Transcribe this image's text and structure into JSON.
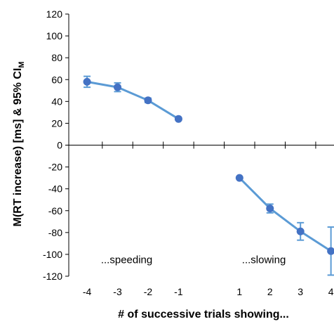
{
  "chart_data": {
    "type": "line",
    "title": "",
    "xlabel": "# of successive trials showing...",
    "ylabel": "M(RT increase) [ms] & 95% CI",
    "ylabel_subscript": "M",
    "ylim": [
      -120,
      120
    ],
    "ytick_step": 20,
    "xlim": [
      -4.6,
      4.1
    ],
    "xticks": [
      -4,
      -3,
      -2,
      -1,
      1,
      2,
      3,
      4
    ],
    "x_minor_ticks": [
      -3.5,
      -2.5,
      -1.5,
      -0.5,
      0.5,
      1.5,
      2.5,
      3.5
    ],
    "grid": false,
    "legend": "none",
    "color": "#5b9bd5",
    "marker_color": "#4472c4",
    "series": [
      {
        "x": [
          -4,
          -3,
          -2,
          -1
        ],
        "y": [
          58,
          53,
          41,
          24
        ],
        "err_low": [
          5,
          4,
          2,
          0
        ],
        "err_high": [
          5,
          4,
          2,
          0
        ]
      },
      {
        "x": [
          1,
          2,
          3,
          4
        ],
        "y": [
          -30,
          -58,
          -79,
          -97
        ],
        "err_low": [
          0,
          4,
          8,
          22
        ],
        "err_high": [
          0,
          4,
          8,
          22
        ]
      }
    ],
    "annotations": [
      {
        "text": "...speeding",
        "x": -2.7,
        "y": -105
      },
      {
        "text": "...slowing",
        "x": 1.8,
        "y": -105
      }
    ]
  }
}
